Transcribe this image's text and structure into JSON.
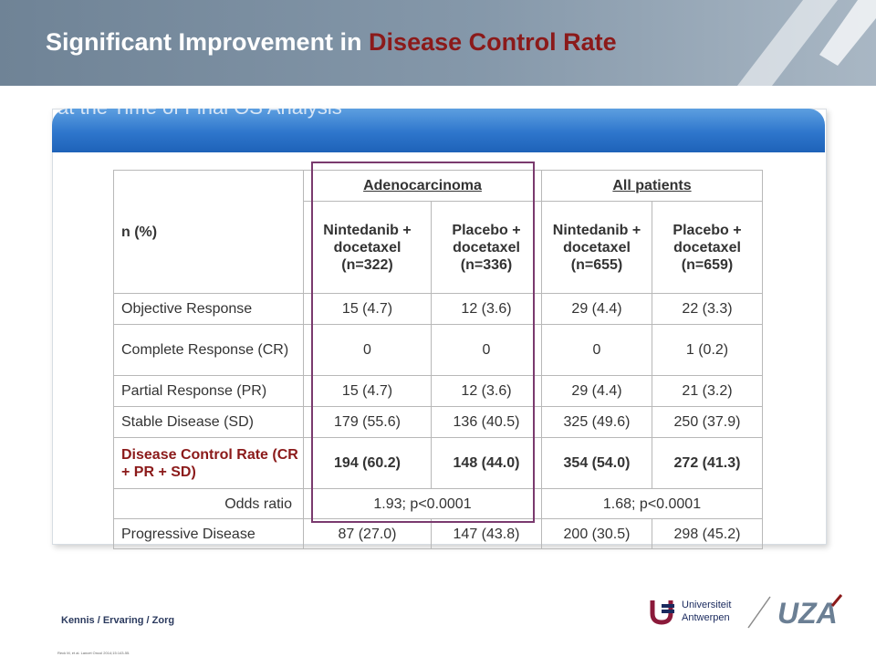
{
  "slide": {
    "title_part1": "Significant Improvement in ",
    "title_part2": "Disease Control Rate",
    "panel_title": "at the Time of Final OS Analysis"
  },
  "table": {
    "n_label": "n (%)",
    "group_adeno": "Adenocarcinoma",
    "group_all": "All patients",
    "columns": [
      "Nintedanib + docetaxel (n=322)",
      "Placebo + docetaxel (n=336)",
      "Nintedanib + docetaxel (n=655)",
      "Placebo + docetaxel (n=659)"
    ],
    "rows": [
      {
        "label": "Objective Response",
        "values": [
          "15 (4.7)",
          "12 (3.6)",
          "29 (4.4)",
          "22 (3.3)"
        ]
      },
      {
        "label": "Complete Response (CR)",
        "values": [
          "0",
          "0",
          "0",
          "1 (0.2)"
        ]
      },
      {
        "label": "Partial Response (PR)",
        "values": [
          "15 (4.7)",
          "12 (3.6)",
          "29 (4.4)",
          "21 (3.2)"
        ]
      },
      {
        "label": "Stable Disease (SD)",
        "values": [
          "179 (55.6)",
          "136 (40.5)",
          "325 (49.6)",
          "250 (37.9)"
        ]
      },
      {
        "label": "Disease Control Rate (CR + PR + SD)",
        "values": [
          "194 (60.2)",
          "148 (44.0)",
          "354 (54.0)",
          "272 (41.3)"
        ]
      }
    ],
    "odds": {
      "label": "Odds ratio",
      "adeno": "1.93; p<0.0001",
      "all": "1.68; p<0.0001"
    },
    "progressive": {
      "label": "Progressive Disease",
      "values": [
        "87 (27.0)",
        "147 (43.8)",
        "200 (30.5)",
        "298 (45.2)"
      ]
    }
  },
  "footer": {
    "tagline": "Kennis / Ervaring / Zorg",
    "citation": "Reck M, et al. Lancet Oncol 2014;15:143-55.",
    "ua_line1": "Universiteit",
    "ua_line2": "Antwerpen",
    "uza_logo": "UZA"
  },
  "colors": {
    "accent_red": "#8b1a1a",
    "header_blue": "#1f3e8c",
    "panel_blue": "#2e76cc",
    "highlight_box": "#7a3a6e"
  }
}
